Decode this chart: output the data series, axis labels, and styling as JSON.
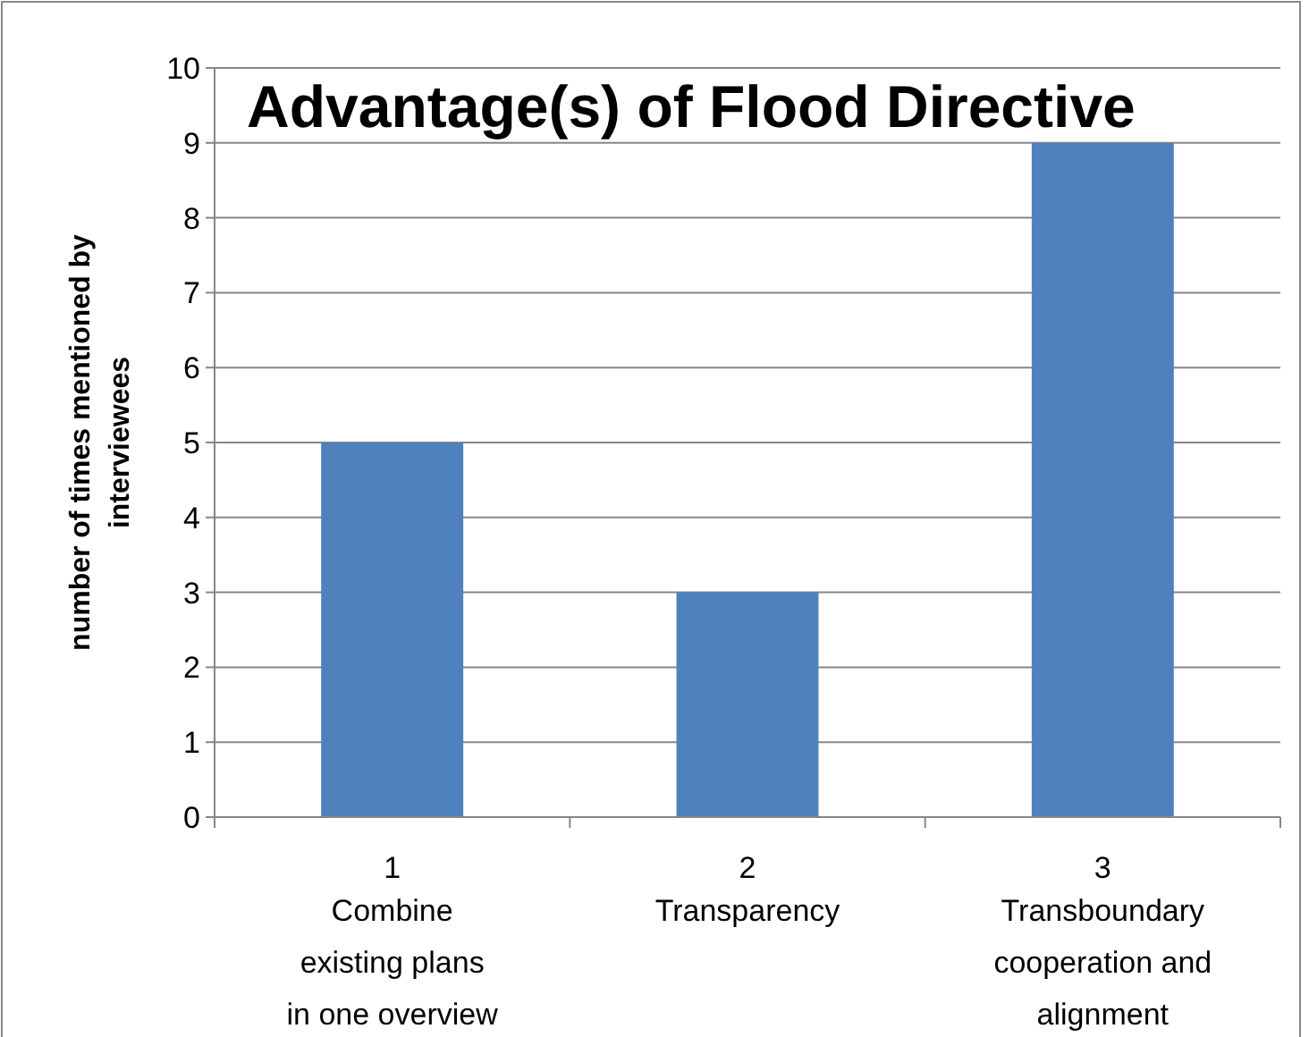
{
  "chart_data": {
    "type": "bar",
    "title": "Advantage(s) of Flood Directive",
    "ylabel": "number of times mentioned by interviewees",
    "categories": [
      "1",
      "2",
      "3"
    ],
    "values": [
      5,
      3,
      9
    ],
    "color": "#4f81bd",
    "ylim": [
      0,
      10
    ],
    "yticks": [
      0,
      1,
      2,
      3,
      4,
      5,
      6,
      7,
      8,
      9,
      10
    ],
    "grid": "y",
    "annotations": [
      "Combine existing plans in one overview",
      "Transparency",
      "Transboundary cooperation and alignment"
    ]
  }
}
